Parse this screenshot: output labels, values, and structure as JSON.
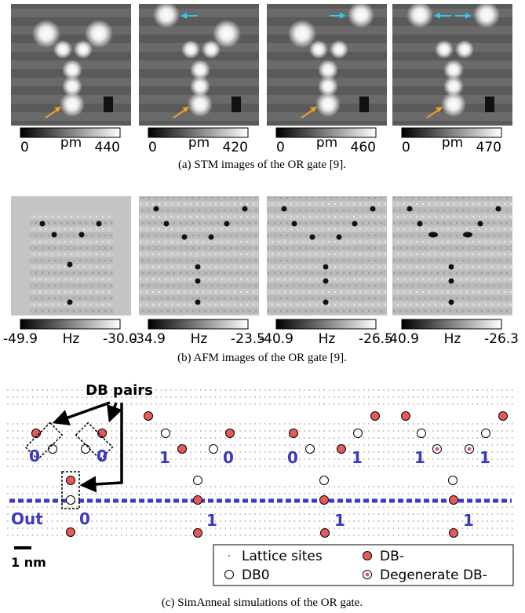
{
  "stm": {
    "panels": [
      {
        "min": "0",
        "unit": "pm",
        "max": "440"
      },
      {
        "min": "0",
        "unit": "pm",
        "max": "420"
      },
      {
        "min": "0",
        "unit": "pm",
        "max": "460"
      },
      {
        "min": "0",
        "unit": "pm",
        "max": "470"
      }
    ],
    "caption": "(a) STM images of the OR gate [9]."
  },
  "afm": {
    "panels": [
      {
        "min": "-49.9",
        "unit": "Hz",
        "max": "-30.0"
      },
      {
        "min": "-34.9",
        "unit": "Hz",
        "max": "-23.5"
      },
      {
        "min": "-40.9",
        "unit": "Hz",
        "max": "-26.5"
      },
      {
        "min": "-40.9",
        "unit": "Hz",
        "max": "-26.3"
      }
    ],
    "caption": "(b) AFM images of the OR gate [9]."
  },
  "simulation": {
    "callout": "DB pairs",
    "inputs": [
      [
        "0",
        "0"
      ],
      [
        "1",
        "0"
      ],
      [
        "0",
        "1"
      ],
      [
        "1",
        "1"
      ]
    ],
    "output_label": "Out",
    "outputs": [
      "0",
      "1",
      "1",
      "1"
    ],
    "scale_bar": "1 nm",
    "legend": [
      "Lattice sites",
      "DB-",
      "DB0",
      "Degenerate DB-"
    ],
    "caption": "(c) SimAnneal simulations of the OR gate."
  }
}
